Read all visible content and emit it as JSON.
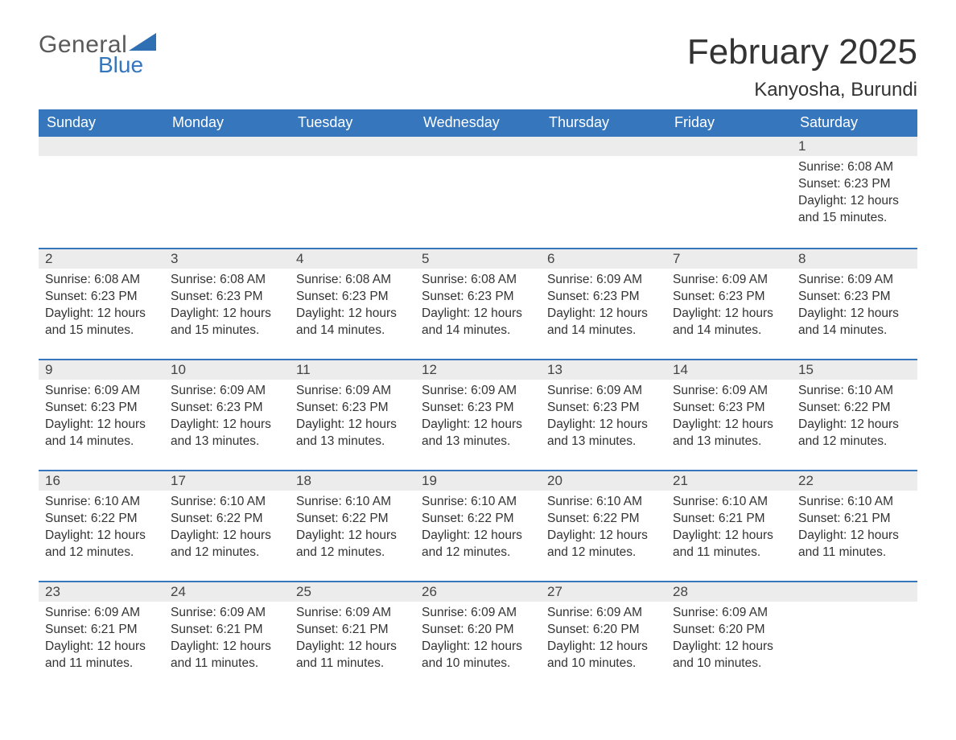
{
  "logo": {
    "text_general": "General",
    "text_blue": "Blue",
    "triangle_color": "#2f6fb4"
  },
  "header": {
    "month_title": "February 2025",
    "location": "Kanyosha, Burundi"
  },
  "colors": {
    "header_bg": "#3576bd",
    "header_text": "#ffffff",
    "day_number_bg": "#ececec",
    "row_divider": "#3576bd",
    "body_text": "#333333",
    "page_bg": "#ffffff"
  },
  "typography": {
    "month_title_fontsize": 44,
    "location_fontsize": 24,
    "weekday_fontsize": 18,
    "daynum_fontsize": 17,
    "body_fontsize": 15.5
  },
  "weekdays": [
    "Sunday",
    "Monday",
    "Tuesday",
    "Wednesday",
    "Thursday",
    "Friday",
    "Saturday"
  ],
  "weeks": [
    [
      null,
      null,
      null,
      null,
      null,
      null,
      {
        "day": "1",
        "sunrise": "Sunrise: 6:08 AM",
        "sunset": "Sunset: 6:23 PM",
        "daylight1": "Daylight: 12 hours",
        "daylight2": "and 15 minutes."
      }
    ],
    [
      {
        "day": "2",
        "sunrise": "Sunrise: 6:08 AM",
        "sunset": "Sunset: 6:23 PM",
        "daylight1": "Daylight: 12 hours",
        "daylight2": "and 15 minutes."
      },
      {
        "day": "3",
        "sunrise": "Sunrise: 6:08 AM",
        "sunset": "Sunset: 6:23 PM",
        "daylight1": "Daylight: 12 hours",
        "daylight2": "and 15 minutes."
      },
      {
        "day": "4",
        "sunrise": "Sunrise: 6:08 AM",
        "sunset": "Sunset: 6:23 PM",
        "daylight1": "Daylight: 12 hours",
        "daylight2": "and 14 minutes."
      },
      {
        "day": "5",
        "sunrise": "Sunrise: 6:08 AM",
        "sunset": "Sunset: 6:23 PM",
        "daylight1": "Daylight: 12 hours",
        "daylight2": "and 14 minutes."
      },
      {
        "day": "6",
        "sunrise": "Sunrise: 6:09 AM",
        "sunset": "Sunset: 6:23 PM",
        "daylight1": "Daylight: 12 hours",
        "daylight2": "and 14 minutes."
      },
      {
        "day": "7",
        "sunrise": "Sunrise: 6:09 AM",
        "sunset": "Sunset: 6:23 PM",
        "daylight1": "Daylight: 12 hours",
        "daylight2": "and 14 minutes."
      },
      {
        "day": "8",
        "sunrise": "Sunrise: 6:09 AM",
        "sunset": "Sunset: 6:23 PM",
        "daylight1": "Daylight: 12 hours",
        "daylight2": "and 14 minutes."
      }
    ],
    [
      {
        "day": "9",
        "sunrise": "Sunrise: 6:09 AM",
        "sunset": "Sunset: 6:23 PM",
        "daylight1": "Daylight: 12 hours",
        "daylight2": "and 14 minutes."
      },
      {
        "day": "10",
        "sunrise": "Sunrise: 6:09 AM",
        "sunset": "Sunset: 6:23 PM",
        "daylight1": "Daylight: 12 hours",
        "daylight2": "and 13 minutes."
      },
      {
        "day": "11",
        "sunrise": "Sunrise: 6:09 AM",
        "sunset": "Sunset: 6:23 PM",
        "daylight1": "Daylight: 12 hours",
        "daylight2": "and 13 minutes."
      },
      {
        "day": "12",
        "sunrise": "Sunrise: 6:09 AM",
        "sunset": "Sunset: 6:23 PM",
        "daylight1": "Daylight: 12 hours",
        "daylight2": "and 13 minutes."
      },
      {
        "day": "13",
        "sunrise": "Sunrise: 6:09 AM",
        "sunset": "Sunset: 6:23 PM",
        "daylight1": "Daylight: 12 hours",
        "daylight2": "and 13 minutes."
      },
      {
        "day": "14",
        "sunrise": "Sunrise: 6:09 AM",
        "sunset": "Sunset: 6:23 PM",
        "daylight1": "Daylight: 12 hours",
        "daylight2": "and 13 minutes."
      },
      {
        "day": "15",
        "sunrise": "Sunrise: 6:10 AM",
        "sunset": "Sunset: 6:22 PM",
        "daylight1": "Daylight: 12 hours",
        "daylight2": "and 12 minutes."
      }
    ],
    [
      {
        "day": "16",
        "sunrise": "Sunrise: 6:10 AM",
        "sunset": "Sunset: 6:22 PM",
        "daylight1": "Daylight: 12 hours",
        "daylight2": "and 12 minutes."
      },
      {
        "day": "17",
        "sunrise": "Sunrise: 6:10 AM",
        "sunset": "Sunset: 6:22 PM",
        "daylight1": "Daylight: 12 hours",
        "daylight2": "and 12 minutes."
      },
      {
        "day": "18",
        "sunrise": "Sunrise: 6:10 AM",
        "sunset": "Sunset: 6:22 PM",
        "daylight1": "Daylight: 12 hours",
        "daylight2": "and 12 minutes."
      },
      {
        "day": "19",
        "sunrise": "Sunrise: 6:10 AM",
        "sunset": "Sunset: 6:22 PM",
        "daylight1": "Daylight: 12 hours",
        "daylight2": "and 12 minutes."
      },
      {
        "day": "20",
        "sunrise": "Sunrise: 6:10 AM",
        "sunset": "Sunset: 6:22 PM",
        "daylight1": "Daylight: 12 hours",
        "daylight2": "and 12 minutes."
      },
      {
        "day": "21",
        "sunrise": "Sunrise: 6:10 AM",
        "sunset": "Sunset: 6:21 PM",
        "daylight1": "Daylight: 12 hours",
        "daylight2": "and 11 minutes."
      },
      {
        "day": "22",
        "sunrise": "Sunrise: 6:10 AM",
        "sunset": "Sunset: 6:21 PM",
        "daylight1": "Daylight: 12 hours",
        "daylight2": "and 11 minutes."
      }
    ],
    [
      {
        "day": "23",
        "sunrise": "Sunrise: 6:09 AM",
        "sunset": "Sunset: 6:21 PM",
        "daylight1": "Daylight: 12 hours",
        "daylight2": "and 11 minutes."
      },
      {
        "day": "24",
        "sunrise": "Sunrise: 6:09 AM",
        "sunset": "Sunset: 6:21 PM",
        "daylight1": "Daylight: 12 hours",
        "daylight2": "and 11 minutes."
      },
      {
        "day": "25",
        "sunrise": "Sunrise: 6:09 AM",
        "sunset": "Sunset: 6:21 PM",
        "daylight1": "Daylight: 12 hours",
        "daylight2": "and 11 minutes."
      },
      {
        "day": "26",
        "sunrise": "Sunrise: 6:09 AM",
        "sunset": "Sunset: 6:20 PM",
        "daylight1": "Daylight: 12 hours",
        "daylight2": "and 10 minutes."
      },
      {
        "day": "27",
        "sunrise": "Sunrise: 6:09 AM",
        "sunset": "Sunset: 6:20 PM",
        "daylight1": "Daylight: 12 hours",
        "daylight2": "and 10 minutes."
      },
      {
        "day": "28",
        "sunrise": "Sunrise: 6:09 AM",
        "sunset": "Sunset: 6:20 PM",
        "daylight1": "Daylight: 12 hours",
        "daylight2": "and 10 minutes."
      },
      null
    ]
  ]
}
